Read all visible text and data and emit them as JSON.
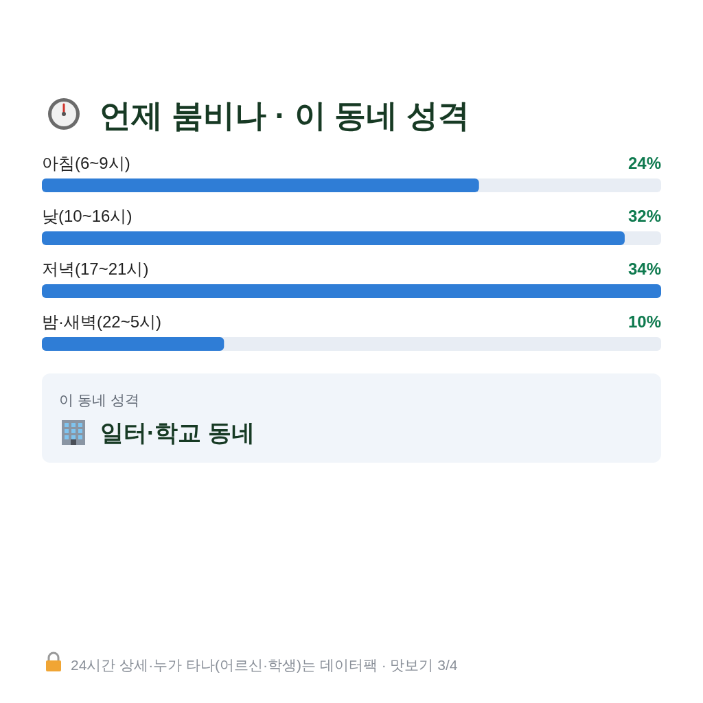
{
  "chart_data": {
    "type": "bar",
    "orientation": "horizontal",
    "title": "언제 붐비나 · 이 동네 성격",
    "categories": [
      "아침(6~9시)",
      "낮(10~16시)",
      "저녁(17~21시)",
      "밤·새벽(22~5시)"
    ],
    "values": [
      24,
      32,
      34,
      10
    ],
    "value_labels": [
      "24%",
      "32%",
      "34%",
      "10%"
    ],
    "color": "#2f7dd6",
    "xlim": [
      0,
      34
    ],
    "annotations": [
      "이 동네 성격",
      "일터·학교 동네",
      "24시간 상세·누가 타나(어르신·학생)는 데이터팩 · 맛보기 3/4"
    ]
  }
}
